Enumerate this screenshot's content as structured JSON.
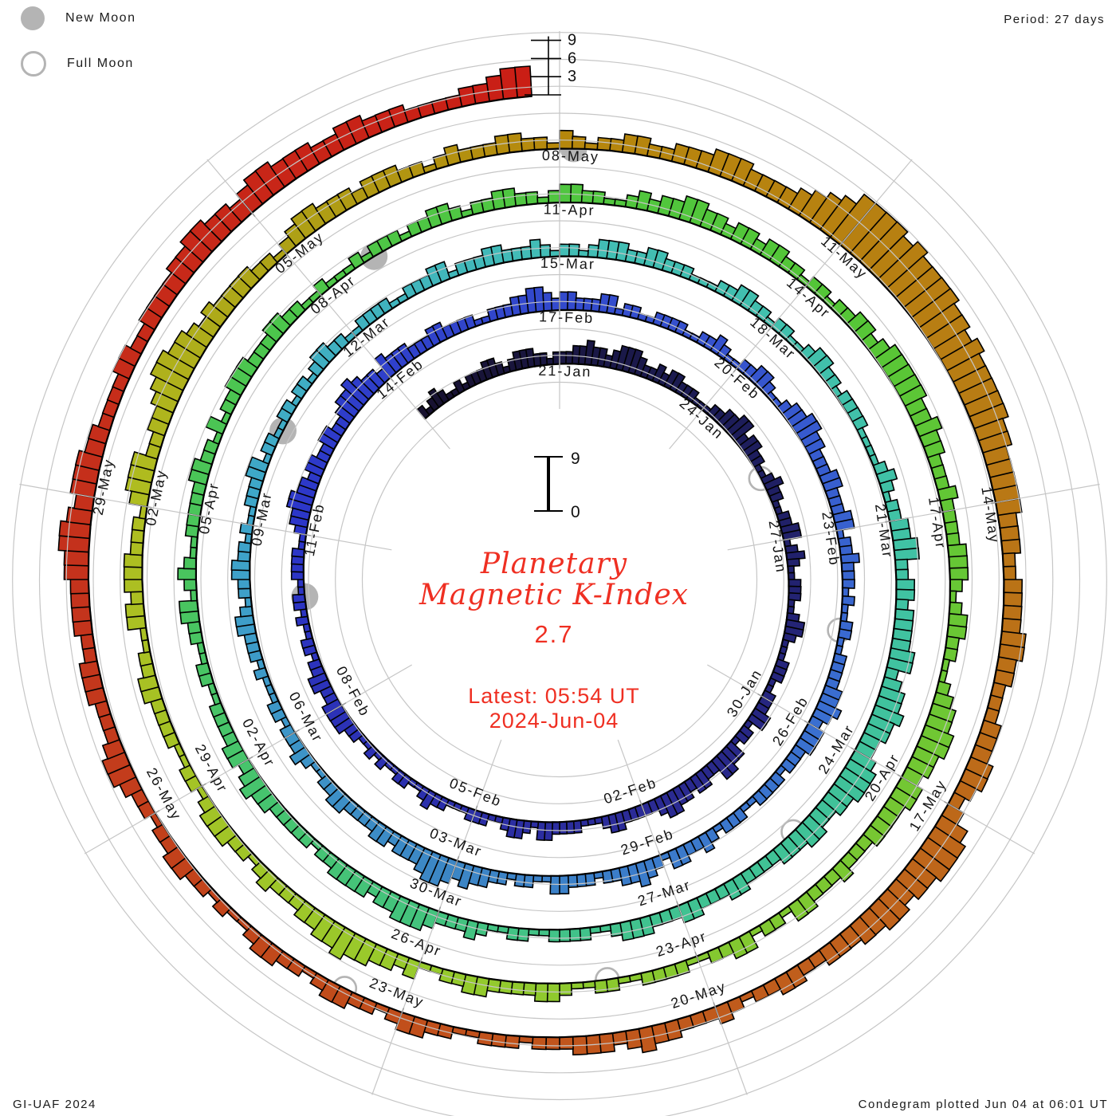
{
  "legend": {
    "new_moon_label": "New Moon",
    "full_moon_label": "Full Moon"
  },
  "period_label": "Period: 27 days",
  "footer": {
    "left": "GI-UAF 2024",
    "right": "Condegram plotted Jun 04 at 06:01 UT"
  },
  "center": {
    "title_line1": "Planetary",
    "title_line2": "Magnetic K-Index",
    "current_k": "2.7",
    "latest_line1": "Latest: 05:54 UT",
    "latest_line2": "2024-Jun-04",
    "scale_max": "9",
    "scale_min": "0"
  },
  "top_scale_labels": [
    "3",
    "6",
    "9"
  ],
  "chart_data": {
    "type": "bar",
    "subtype": "condegram-spiral-polar",
    "quantity": "Planetary Magnetic K-Index, 3-hour values",
    "title": "Planetary Magnetic K-Index",
    "current_k": 2.7,
    "latest_time": "05:54 UT 2024-Jun-04",
    "plotted": "Jun 04 at 06:01 UT",
    "period_days": 27,
    "intervals_per_day": 8,
    "k_range": [
      0,
      9
    ],
    "start_date": "2024-01-18",
    "end_datetime": "2024-06-03 18:00 UT",
    "date_labels": [
      "21-Jan",
      "24-Jan",
      "27-Jan",
      "30-Jan",
      "02-Feb",
      "05-Feb",
      "08-Feb",
      "11-Feb",
      "14-Feb",
      "17-Feb",
      "20-Feb",
      "23-Feb",
      "26-Feb",
      "29-Feb",
      "03-Mar",
      "06-Mar",
      "09-Mar",
      "12-Mar",
      "15-Mar",
      "18-Mar",
      "21-Mar",
      "24-Mar",
      "27-Mar",
      "30-Mar",
      "02-Apr",
      "05-Apr",
      "08-Apr",
      "11-Apr",
      "14-Apr",
      "17-Apr",
      "20-Apr",
      "23-Apr",
      "26-Apr",
      "29-Apr",
      "02-May",
      "05-May",
      "08-May",
      "11-May",
      "14-May",
      "17-May",
      "20-May",
      "23-May",
      "26-May",
      "29-May"
    ],
    "daily_k": [
      "21232112",
      "12223321",
      "23332212",
      "22334332",
      "34443223",
      "23322211",
      "12233442",
      "33221123",
      "22112233",
      "12321122",
      "21123321",
      "11222112",
      "22331221",
      "33442233",
      "23344322",
      "22233211",
      "12222331",
      "23321122",
      "21112232",
      "11221121",
      "21122333",
      "32233221",
      "22112122",
      "11222211",
      "23344332",
      "33223322",
      "34454332",
      "43332223",
      "32222112",
      "22334432",
      "33222331",
      "22112222",
      "11223211",
      "22332112",
      "33443322",
      "23322233",
      "12232221",
      "21122112",
      "22233432",
      "33322212",
      "22211222",
      "12322331",
      "23433221",
      "22233112",
      "21223343",
      "45543332",
      "33222233",
      "22112322",
      "21221112",
      "12223321",
      "22332212",
      "11222331",
      "22112212",
      "21233221",
      "12222112",
      "22331222",
      "33222321",
      "22123332",
      "23322211",
      "12233221",
      "22112332",
      "21222211",
      "11232122",
      "33442233",
      "23333442",
      "34454433",
      "45554433",
      "44333222",
      "23322233",
      "22233321",
      "12222112",
      "21123222",
      "34443323",
      "33322122",
      "22233432",
      "33222211",
      "22112233",
      "12321122",
      "22233221",
      "31223332",
      "22332211",
      "21112122",
      "21223321",
      "22332212",
      "33221123",
      "23344332",
      "33233221",
      "22122332",
      "34444433",
      "43322232",
      "22233321",
      "23322112",
      "34455443",
      "44333322",
      "23222331",
      "22133221",
      "12222112",
      "21123322",
      "22332211",
      "32334454",
      "43322232",
      "12233321",
      "22112222",
      "33221133",
      "23332221",
      "34442233",
      "45665543",
      "43333221",
      "23443332",
      "33322123",
      "22233221",
      "32122332",
      "23334443",
      "33345679",
      "99989888",
      "87767666",
      "66554444",
      "43332233",
      "33443322",
      "23334432",
      "35666554",
      "55443332",
      "23322123",
      "22233432",
      "33322212",
      "22112233",
      "21223321",
      "22332112",
      "12233221",
      "22344322",
      "23332233",
      "33445543",
      "44433222",
      "23322333",
      "34455443",
      "45544433",
      "44333222",
      "233455"
    ],
    "new_moons": [
      {
        "date": "2024-Feb-09",
        "t_days": 22.96
      },
      {
        "date": "2024-Mar-10",
        "t_days": 52.37
      },
      {
        "date": "2024-Apr-08",
        "t_days": 81.76
      },
      {
        "date": "2024-May-08",
        "t_days": 111.14
      }
    ],
    "full_moons": [
      {
        "date": "2024-Jan-25",
        "t_days": 7.75
      },
      {
        "date": "2024-Feb-24",
        "t_days": 37.52
      },
      {
        "date": "2024-Mar-25",
        "t_days": 67.29
      },
      {
        "date": "2024-Apr-23",
        "t_days": 96.99
      },
      {
        "date": "2024-May-23",
        "t_days": 126.58
      }
    ],
    "color_stops": [
      [
        0,
        "#17112f"
      ],
      [
        6,
        "#1c1c55"
      ],
      [
        15,
        "#2b2b96"
      ],
      [
        24,
        "#2c36c9"
      ],
      [
        33,
        "#3654ce"
      ],
      [
        39,
        "#3a70d0"
      ],
      [
        45,
        "#3c86c5"
      ],
      [
        51,
        "#3ea5ca"
      ],
      [
        57,
        "#42bdb5"
      ],
      [
        63,
        "#40c2a5"
      ],
      [
        69,
        "#40c291"
      ],
      [
        75,
        "#47c46b"
      ],
      [
        81,
        "#4dc648"
      ],
      [
        87,
        "#53c637"
      ],
      [
        93,
        "#73c733"
      ],
      [
        99,
        "#98ca2c"
      ],
      [
        105,
        "#afbd20"
      ],
      [
        108,
        "#aea116"
      ],
      [
        111,
        "#b6870c"
      ],
      [
        116,
        "#b87c14"
      ],
      [
        122,
        "#c05e1c"
      ],
      [
        127,
        "#c14a1b"
      ],
      [
        131,
        "#c4331c"
      ],
      [
        138,
        "#ca1d15"
      ]
    ],
    "style_colors": {
      "accent_red": "#ef2f22",
      "grid_gray": "#c6c6c6",
      "moon_gray": "#b4b4b4",
      "tick_gray": "#9b9b9b",
      "label_black": "#141414"
    },
    "legend_position": "top-left",
    "grid": true
  }
}
